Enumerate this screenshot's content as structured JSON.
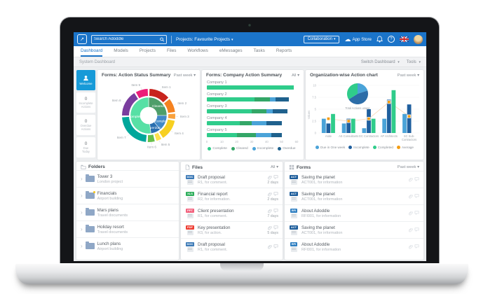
{
  "colors": {
    "accent": "#1b74c9",
    "active_tab": "#1a73c7",
    "welcome_tile": "#179ad8"
  },
  "header": {
    "search_placeholder": "Search Adoddle",
    "projects_menu": "Projects: Favourite Projects",
    "collaboration": "Collaboration",
    "app_store": "App Store"
  },
  "nav": {
    "tabs": [
      {
        "label": "Dashboard",
        "active": true
      },
      {
        "label": "Models",
        "active": false
      },
      {
        "label": "Projects",
        "active": false
      },
      {
        "label": "Files",
        "active": false
      },
      {
        "label": "Workflows",
        "active": false
      },
      {
        "label": "eMessages",
        "active": false
      },
      {
        "label": "Tasks",
        "active": false
      },
      {
        "label": "Reports",
        "active": false
      }
    ]
  },
  "subbar": {
    "title": "System Dashboard",
    "switch_dashboard": "Switch Dashboard",
    "tools": "Tools"
  },
  "sidebar": {
    "welcome": "Welcome",
    "counters": [
      {
        "value": "0",
        "label": "Incomplete Actions"
      },
      {
        "value": "0",
        "label": "Overdue Actions"
      },
      {
        "value": "0",
        "label": "Due Today"
      }
    ]
  },
  "chart_data": [
    {
      "type": "donut",
      "title": "Forms: Action Status Summary",
      "filter": "Past week",
      "inner_ring": [
        {
          "label": "Cleared",
          "value": 25,
          "color": "#4e9e6a"
        },
        {
          "label": "Incomplete",
          "value": 14,
          "color": "#4189c7"
        },
        {
          "label": "Overdue",
          "value": 9,
          "color": "#2a6fb0"
        },
        {
          "label": "Complete",
          "value": 52,
          "color": "#57e0a5"
        }
      ],
      "outer_ring": [
        {
          "label": "Item 1",
          "value": 13,
          "color": "#c8241d"
        },
        {
          "label": "Item 2",
          "value": 9,
          "color": "#f58220"
        },
        {
          "label": "Item 3",
          "value": 4,
          "color": "#f9a13c"
        },
        {
          "label": "Item 4",
          "value": 13,
          "color": "#f7d021"
        },
        {
          "label": "Item 5",
          "value": 4,
          "color": "#ffe14d"
        },
        {
          "label": "Item 6",
          "value": 5,
          "color": "#67bf4a"
        },
        {
          "label": "Item 7",
          "value": 22,
          "color": "#00a79b"
        },
        {
          "label": "Item 8",
          "value": 16,
          "color": "#7a3d9e"
        },
        {
          "label": "Item 9",
          "value": 8,
          "color": "#ec1e79"
        }
      ]
    },
    {
      "type": "stacked_hbar",
      "title": "Forms: Company Action Summary",
      "filter": "All",
      "categories": [
        "Company 1",
        "Company 2",
        "Company 3",
        "Company 4",
        "Company 5"
      ],
      "series": [
        {
          "name": "Complete",
          "color": "#2fcc8b",
          "values": [
            58,
            32,
            30,
            22,
            20
          ]
        },
        {
          "name": "Cleared",
          "color": "#33a667",
          "values": [
            0,
            10,
            10,
            8,
            13
          ]
        },
        {
          "name": "Incomplete",
          "color": "#4aa3d8",
          "values": [
            0,
            4,
            4,
            10,
            10
          ]
        },
        {
          "name": "Overdue",
          "color": "#1f618d",
          "values": [
            0,
            9,
            10,
            10,
            7
          ]
        }
      ],
      "xticks": [
        0,
        10,
        20,
        30,
        40,
        50,
        60
      ],
      "xmax": 60
    },
    {
      "type": "grouped_bar_with_pie",
      "title": "Organization-wise Action chart",
      "filter": "Past week",
      "ylabel": "Values",
      "yticks": [
        0,
        2.5,
        5,
        7.5,
        10
      ],
      "ymax": 10,
      "pie": {
        "label": "Total Actions usage",
        "slices": [
          {
            "name": "Due in One week",
            "value": 20,
            "color": "#4aa3d8"
          },
          {
            "name": "Incomplete",
            "value": 46,
            "color": "#2c6da8"
          },
          {
            "name": "Completed",
            "value": 34,
            "color": "#2fcc8b"
          }
        ]
      },
      "categories": [
        "Asite",
        "AS Consultants",
        "GC Contractors",
        "AP Architects",
        "SC Sub-Contractors"
      ],
      "series": [
        {
          "name": "Due in One week",
          "color": "#4aa3d8",
          "values": [
            3,
            2,
            1,
            3,
            4
          ]
        },
        {
          "name": "Incomplete",
          "color": "#1f5f9e",
          "values": [
            2,
            3,
            5,
            7,
            6
          ]
        },
        {
          "name": "Completed",
          "color": "#2fcc8b",
          "values": [
            4,
            3,
            3,
            9,
            0
          ]
        }
      ],
      "average": {
        "name": "Average",
        "color": "#f39c12",
        "values": [
          3,
          2.5,
          3,
          6.5,
          3.5
        ]
      }
    }
  ],
  "folders": {
    "title": "Folders",
    "rows": [
      {
        "title": "Tower 3",
        "subtitle": "London project",
        "dot": false
      },
      {
        "title": "Financials",
        "subtitle": "Airport building",
        "dot": true
      },
      {
        "title": "Mars plans",
        "subtitle": "Travel documents",
        "dot": false
      },
      {
        "title": "Holiday resort",
        "subtitle": "Travel documents",
        "dot": false
      },
      {
        "title": "Lunch plans",
        "subtitle": "Airport building",
        "dot": false
      }
    ]
  },
  "files": {
    "title": "Files",
    "filter": "All",
    "rows": [
      {
        "badge": "DOC",
        "badge_color": "#3a78b5",
        "title": "Draft proposal",
        "subtitle": "R1, for comment.",
        "age": "2 days"
      },
      {
        "badge": "XLS",
        "badge_color": "#2eae5c",
        "title": "Financial report",
        "subtitle": "R2, for information.",
        "age": "2 days"
      },
      {
        "badge": "PPT",
        "badge_color": "#f2637e",
        "title": "Client presentation",
        "subtitle": "R1, for comment.",
        "age": "7 days"
      },
      {
        "badge": "PDF",
        "badge_color": "#ee4035",
        "title": "Key presentation",
        "subtitle": "R3, for action.",
        "age": "5 days"
      },
      {
        "badge": "DOC",
        "badge_color": "#3a78b5",
        "title": "Draft proposal",
        "subtitle": "R1, for comment.",
        "age": ""
      }
    ]
  },
  "forms": {
    "title": "Forms",
    "filter": "Past week",
    "rows": [
      {
        "badge": "ACT",
        "badge_color": "#1d5d9b",
        "title": "Saving the planet",
        "subtitle": "ACT001, for information"
      },
      {
        "badge": "ACT",
        "badge_color": "#1d5d9b",
        "title": "Saving the planet",
        "subtitle": "ACT001, for information"
      },
      {
        "badge": "RFI",
        "badge_color": "#2f7fc1",
        "title": "About Adoddle",
        "subtitle": "RFI001, for information"
      },
      {
        "badge": "ACT",
        "badge_color": "#1d5d9b",
        "title": "Saving the planet",
        "subtitle": "ACT001, for information"
      },
      {
        "badge": "RFI",
        "badge_color": "#2f7fc1",
        "title": "About Adoddle",
        "subtitle": "RFI001, for information"
      }
    ]
  }
}
